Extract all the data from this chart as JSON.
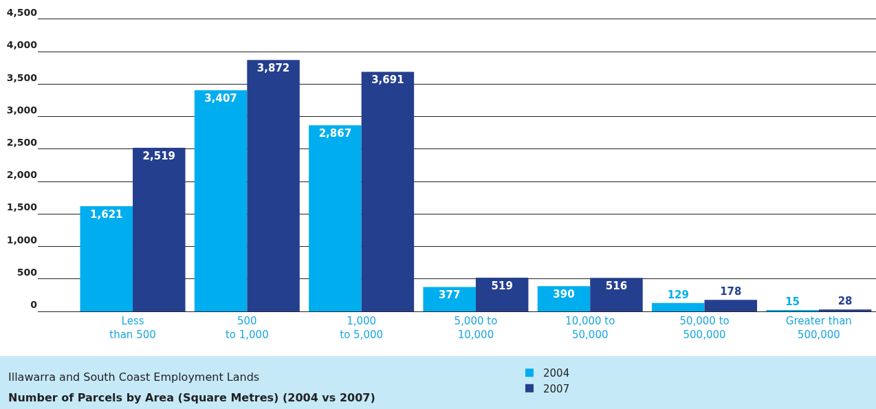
{
  "chart_data": {
    "type": "bar",
    "title": "Illawarra and South Coast Employment Lands",
    "subtitle": "Number of Parcels by Area (Square Metres) (2004 vs 2007)",
    "categories": [
      "Less\nthan 500",
      "500\nto 1,000",
      "1,000\nto 5,000",
      "5,000 to\n10,000",
      "10,000 to\n50,000",
      "50,000 to\n500,000",
      "Greater than\n500,000"
    ],
    "series": [
      {
        "name": "2004",
        "color": "#00aeef",
        "values": [
          1621,
          3407,
          2867,
          377,
          390,
          129,
          15
        ],
        "value_labels": [
          "1,621",
          "3,407",
          "2,867",
          "377",
          "390",
          "129",
          "15"
        ]
      },
      {
        "name": "2007",
        "color": "#253f8f",
        "values": [
          2519,
          3872,
          3691,
          519,
          516,
          178,
          28
        ],
        "value_labels": [
          "2,519",
          "3,872",
          "3,691",
          "519",
          "516",
          "178",
          "28"
        ]
      }
    ],
    "ylim": [
      0,
      4500
    ],
    "yticks": [
      {
        "value": 0,
        "label": "0"
      },
      {
        "value": 500,
        "label": "500"
      },
      {
        "value": 1000,
        "label": "1,000"
      },
      {
        "value": 1500,
        "label": "1,500"
      },
      {
        "value": 2000,
        "label": "2,000"
      },
      {
        "value": 2500,
        "label": "2,500"
      },
      {
        "value": 3000,
        "label": "3,000"
      },
      {
        "value": 3500,
        "label": "3,500"
      },
      {
        "value": 4000,
        "label": "4,000"
      },
      {
        "value": 4500,
        "label": "4,500"
      }
    ],
    "grid": "y",
    "legend": "bottom"
  }
}
